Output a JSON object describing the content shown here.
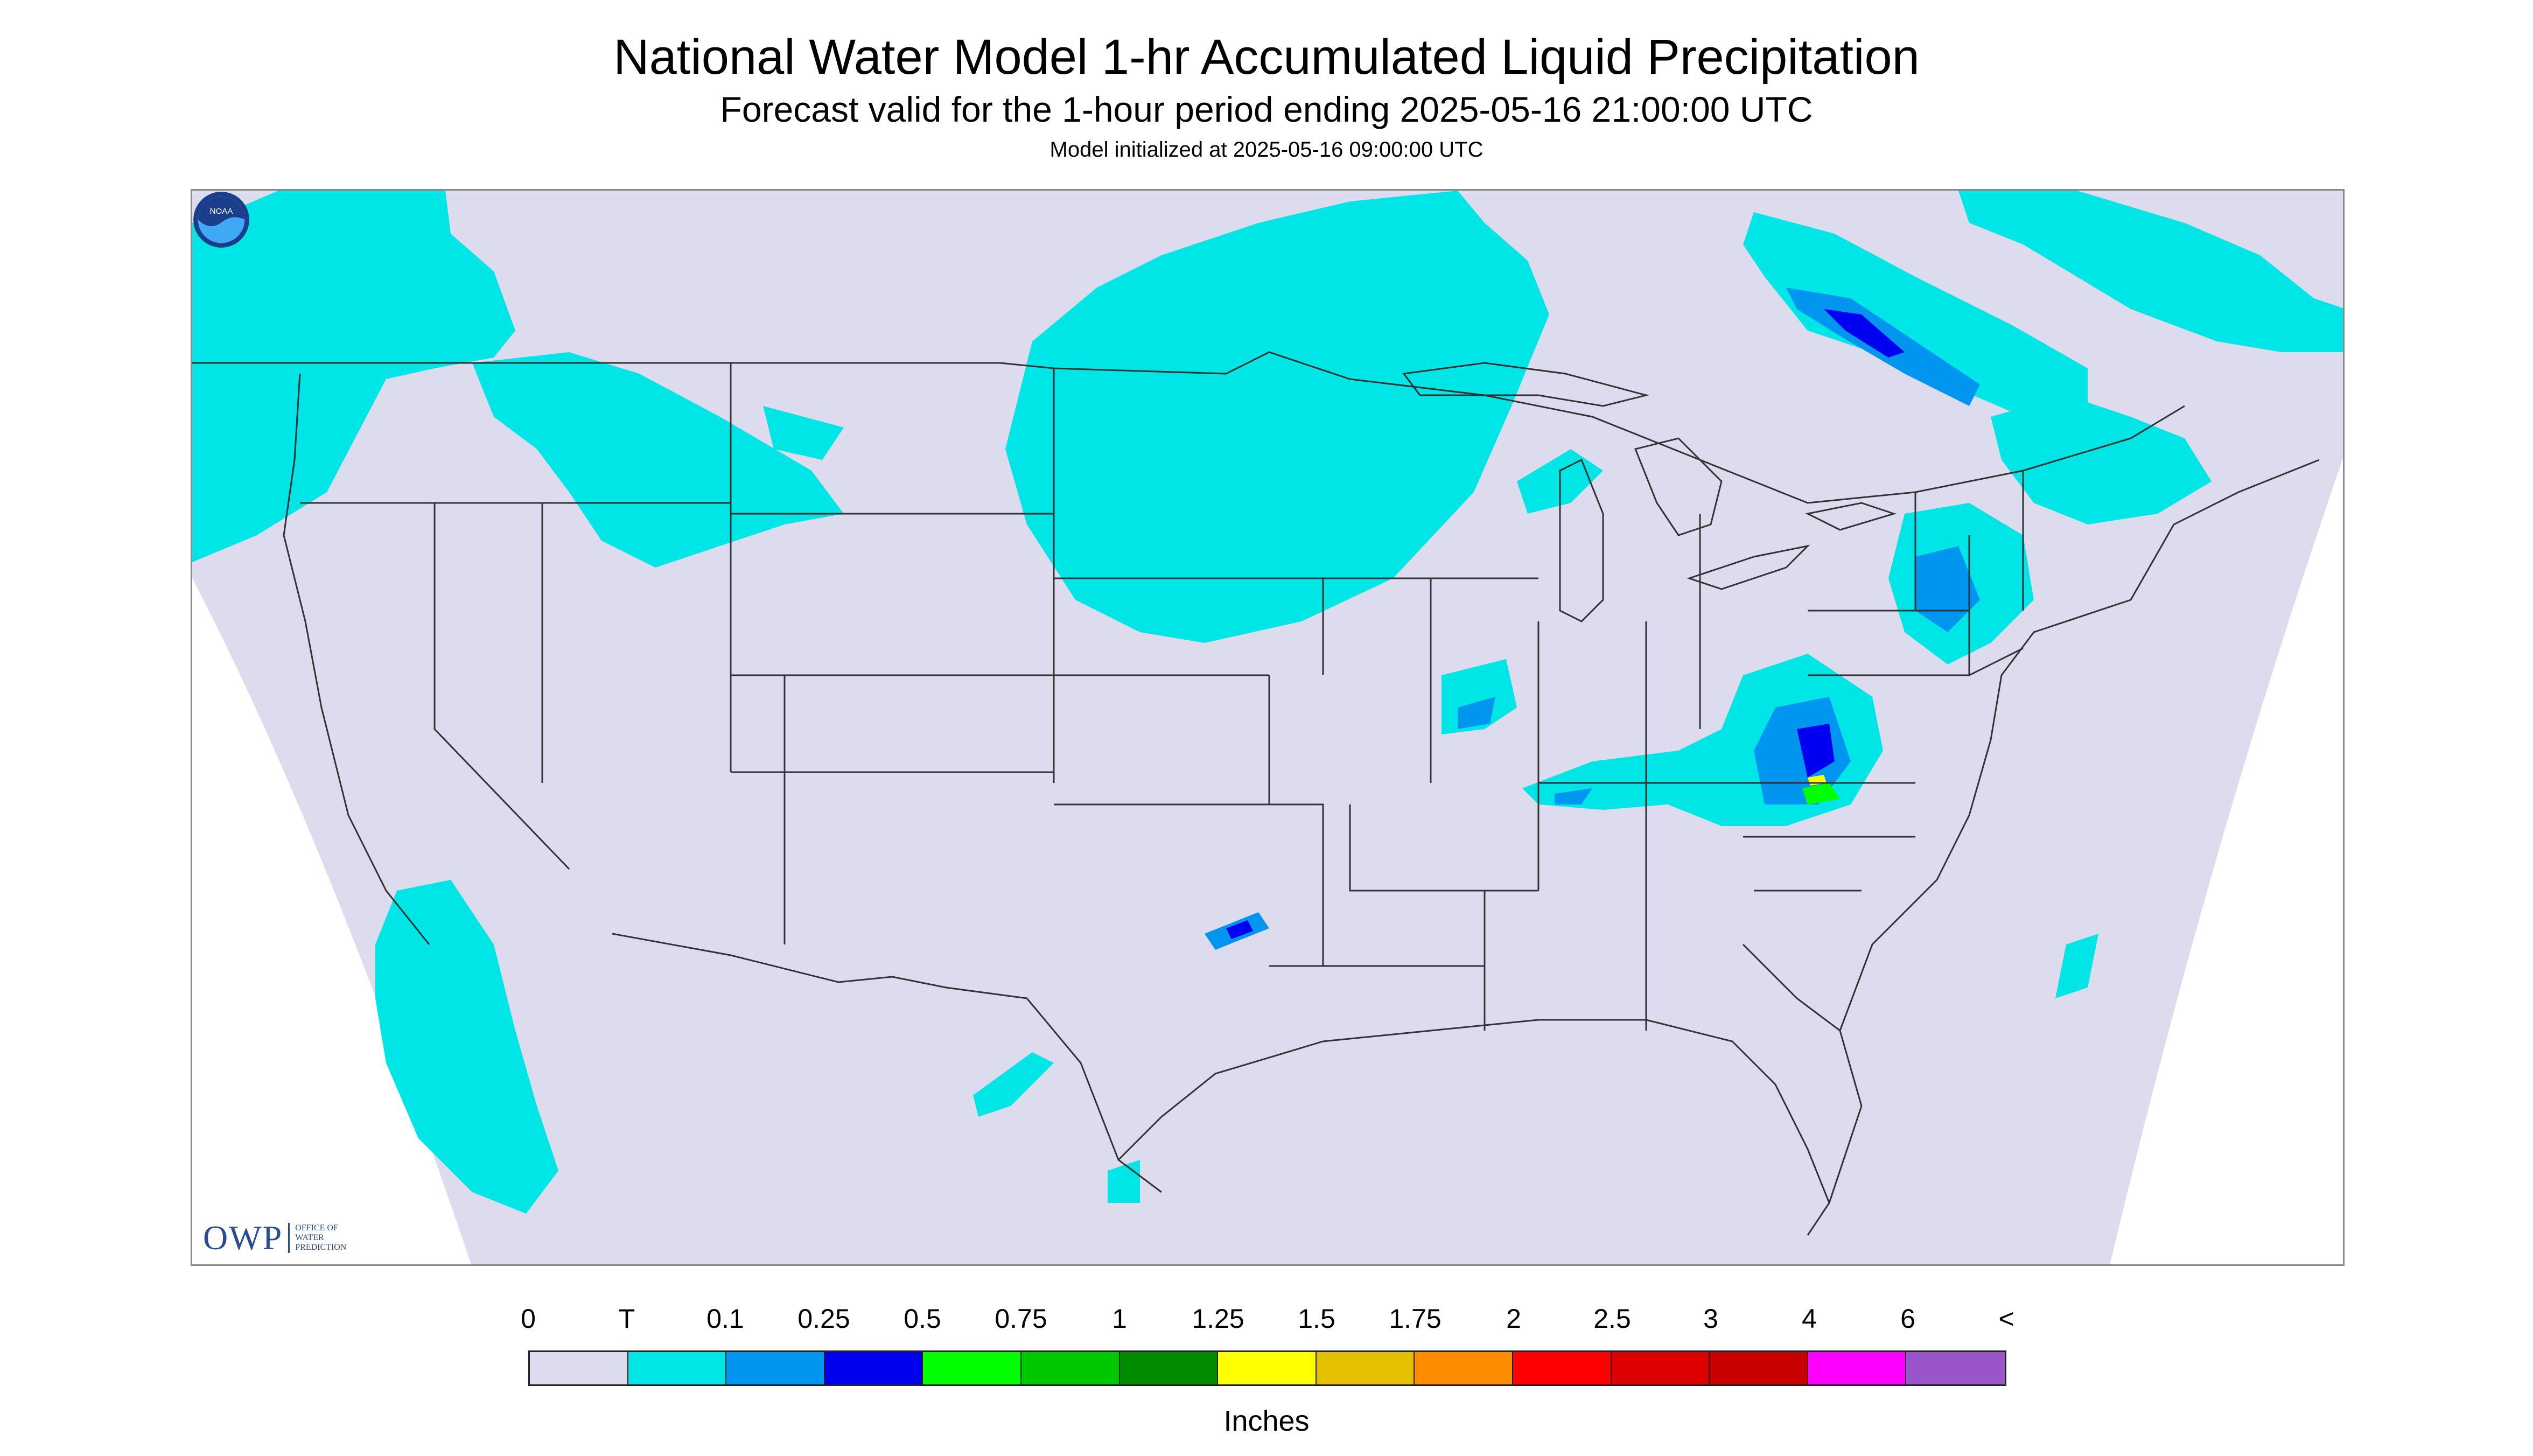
{
  "header": {
    "title": "National Water Model 1-hr Accumulated Liquid Precipitation",
    "subtitle": "Forecast valid for the 1-hour period ending 2025-05-16 21:00:00 UTC",
    "init": "Model initialized at 2025-05-16 09:00:00 UTC"
  },
  "logos": {
    "owp_mark": "OWP",
    "owp_text": [
      "OFFICE OF",
      "WATER",
      "PREDICTION"
    ],
    "noaa_text": "NOAA"
  },
  "legend": {
    "labels": [
      "0",
      "T",
      "0.1",
      "0.25",
      "0.5",
      "0.75",
      "1",
      "1.25",
      "1.5",
      "1.75",
      "2",
      "2.5",
      "3",
      "4",
      "6",
      "<"
    ],
    "colors": [
      "#dcdcee",
      "#00e5e5",
      "#0096f0",
      "#0000f0",
      "#00ff00",
      "#00c800",
      "#008c00",
      "#ffff00",
      "#e5c000",
      "#ff8c00",
      "#ff0000",
      "#dc0000",
      "#c80000",
      "#ff00ff",
      "#9955c9"
    ],
    "unit": "Inches"
  },
  "map": {
    "domain_color": "#dcdcee",
    "outside_color": "#ffffff",
    "boundary_color": "#333333",
    "trace_color": "#00e5e5",
    "light_color": "#0096f0",
    "heavy_color": "#0000f0",
    "green_color": "#00ff00",
    "yellow_color": "#ffff00"
  }
}
